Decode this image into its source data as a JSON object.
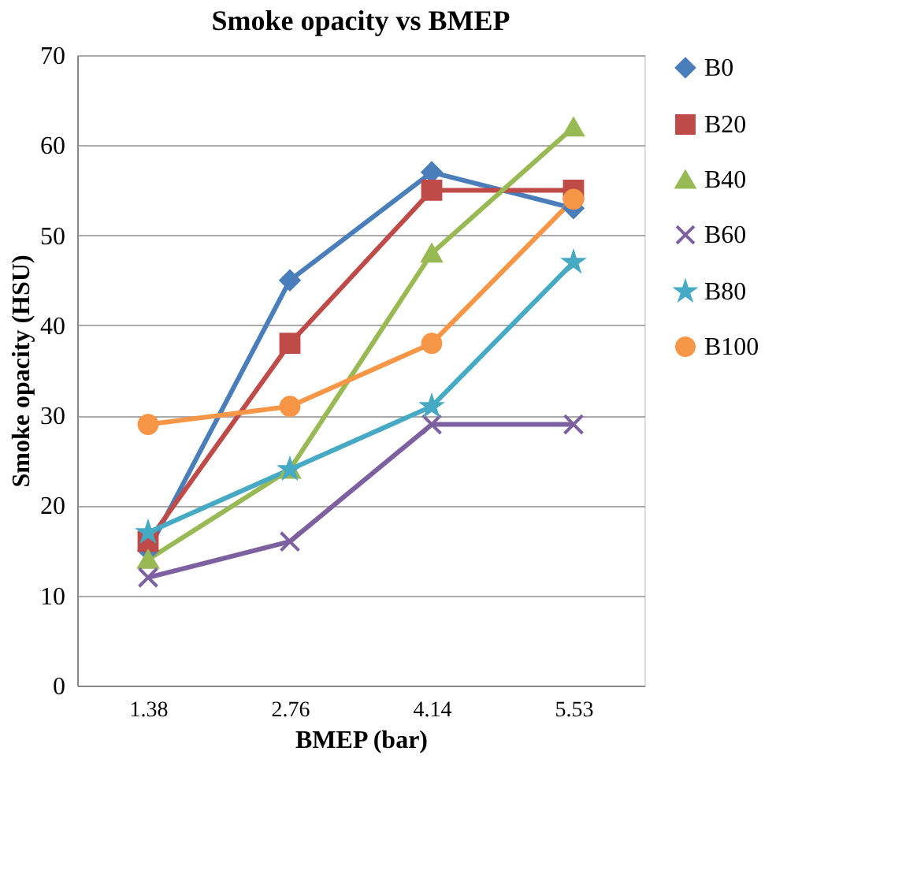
{
  "chart_data": {
    "type": "line",
    "title": "Smoke opacity vs BMEP",
    "xlabel": "BMEP (bar)",
    "ylabel": "Smoke opacity (HSU)",
    "categories": [
      "1.38",
      "2.76",
      "4.14",
      "5.53"
    ],
    "ylim": [
      0,
      70
    ],
    "yticks": [
      0,
      10,
      20,
      30,
      40,
      50,
      60,
      70
    ],
    "grid": "y",
    "legend": "right",
    "line_style": "solid",
    "series": [
      {
        "name": "B0",
        "color": "#4a7ebb",
        "marker": "diamond",
        "values": [
          15,
          45,
          57,
          53
        ]
      },
      {
        "name": "B20",
        "color": "#be4b48",
        "marker": "square",
        "values": [
          16,
          38,
          55,
          55
        ]
      },
      {
        "name": "B40",
        "color": "#98b954",
        "marker": "triangle",
        "values": [
          14,
          24,
          48,
          62
        ]
      },
      {
        "name": "B60",
        "color": "#7d60a0",
        "marker": "cross",
        "values": [
          12,
          16,
          29,
          29
        ]
      },
      {
        "name": "B80",
        "color": "#46aac5",
        "marker": "star",
        "values": [
          17,
          24,
          31,
          47
        ]
      },
      {
        "name": "B100",
        "color": "#f79646",
        "marker": "circle",
        "values": [
          29,
          31,
          38,
          54
        ]
      }
    ]
  }
}
